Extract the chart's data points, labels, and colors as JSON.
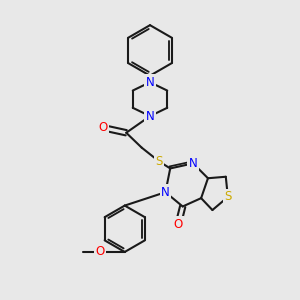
{
  "bg_color": "#e8e8e8",
  "bond_color": "#1a1a1a",
  "bond_width": 1.5,
  "atom_colors": {
    "N": "#0000ff",
    "O": "#ff0000",
    "S": "#ccaa00",
    "C": "#1a1a1a"
  },
  "font_size": 8.5,
  "fig_size": [
    3.0,
    3.0
  ],
  "dpi": 100
}
